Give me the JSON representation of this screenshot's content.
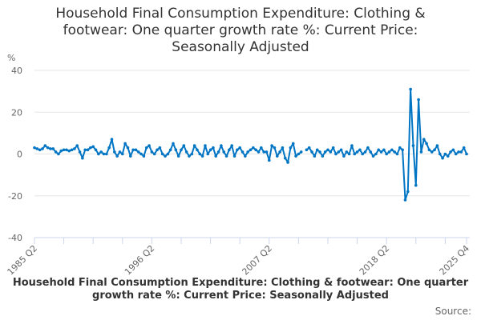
{
  "chart_data": {
    "type": "line",
    "title": "Household Final Consumption Expenditure: Clothing & footwear: One quarter growth rate %: Current Price: Seasonally Adjusted",
    "ylabel": "%",
    "x_start": "1985 Q2",
    "x_end": "2025 Q4",
    "frequency": "quarterly",
    "xtick_labels": [
      "1985 Q2",
      "1996 Q2",
      "2007 Q2",
      "2018 Q2",
      "2025 Q4"
    ],
    "ytick_labels": [
      "40",
      "20",
      "0",
      "-20",
      "-40"
    ],
    "ylim": [
      -40,
      40
    ],
    "grid": true,
    "color": "#0075c4",
    "values": [
      3,
      2.5,
      2,
      2.5,
      4,
      3,
      2.5,
      2.5,
      1,
      0,
      1.5,
      2,
      2,
      1.5,
      2,
      2.5,
      4,
      1,
      -2,
      2,
      2,
      3,
      3.5,
      2,
      0,
      1,
      0,
      0,
      3,
      7,
      1,
      -1,
      1,
      0,
      5,
      3,
      -1,
      2,
      2,
      1,
      0,
      -1,
      3,
      4,
      1,
      0,
      2,
      3,
      0,
      -1,
      0,
      2,
      5,
      2,
      -1,
      2,
      4,
      1,
      -1,
      0,
      4,
      2,
      0,
      -1,
      4,
      0,
      2,
      3,
      -1,
      1,
      4,
      1,
      -1,
      2,
      4,
      -1,
      2,
      3,
      1,
      -1,
      1,
      2,
      3,
      2,
      1,
      3,
      1,
      1,
      -3,
      4,
      3,
      -1,
      1,
      3,
      -2,
      -4,
      3,
      5,
      -1,
      0,
      1,
      null,
      2,
      3,
      1,
      -1,
      2,
      1,
      -1,
      1,
      2,
      1,
      3,
      0,
      1,
      2,
      -1,
      1,
      0,
      4,
      0,
      1,
      2,
      0,
      1,
      3,
      1,
      -1,
      0,
      2,
      1,
      2,
      0,
      1,
      2,
      1,
      0,
      3,
      2,
      -22,
      -18,
      31,
      4,
      -15,
      26,
      1,
      7,
      5,
      2,
      1,
      2,
      4,
      0,
      -2,
      0,
      -1,
      1,
      2,
      0,
      1,
      1,
      3,
      0
    ]
  },
  "footer_text": "Household Final Consumption Expenditure: Clothing & footwear: One quarter growth rate %: Current Price: Seasonally Adjusted",
  "source_label": "Source:"
}
